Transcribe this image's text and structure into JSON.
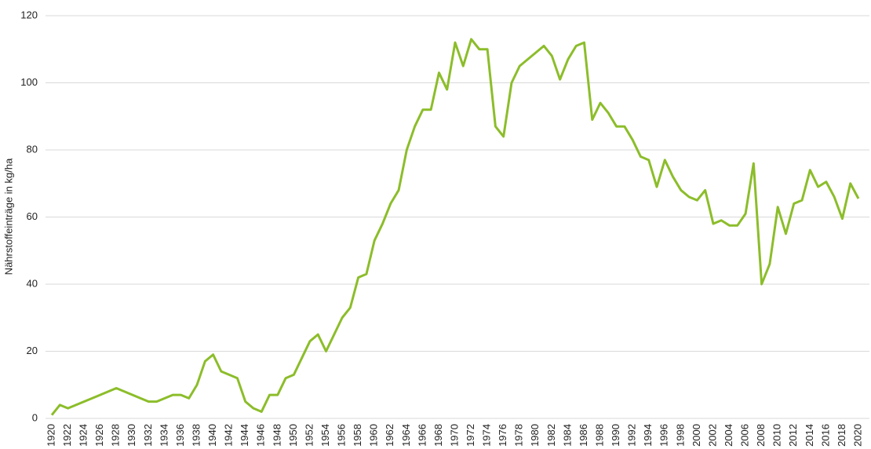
{
  "chart_data": {
    "type": "line",
    "y_label": "Nährstoffeinträge in kg/ha",
    "x": [
      1920,
      1921,
      1922,
      1928,
      1932,
      1933,
      1935,
      1936,
      1937,
      1938,
      1939,
      1940,
      1941,
      1943,
      1944,
      1945,
      1946,
      1947,
      1948,
      1949,
      1950,
      1951,
      1952,
      1953,
      1954,
      1955,
      1956,
      1957,
      1958,
      1959,
      1960,
      1961,
      1962,
      1963,
      1964,
      1965,
      1966,
      1967,
      1968,
      1969,
      1970,
      1971,
      1972,
      1973,
      1974,
      1975,
      1976,
      1977,
      1978,
      1981,
      1982,
      1983,
      1984,
      1985,
      1986,
      1987,
      1988,
      1989,
      1990,
      1991,
      1992,
      1993,
      1994,
      1995,
      1996,
      1997,
      1998,
      1999,
      2000,
      2001,
      2002,
      2003,
      2004,
      2005,
      2006,
      2007,
      2008,
      2009,
      2010,
      2011,
      2012,
      2013,
      2014,
      2015,
      2016,
      2017,
      2018,
      2019,
      2020
    ],
    "series": [
      {
        "color": "#8cbd2a",
        "values": [
          1,
          4,
          3,
          9,
          5,
          5,
          7,
          7,
          6,
          10,
          17,
          19,
          14,
          12,
          5,
          3,
          2,
          7,
          7,
          12,
          13,
          18,
          23,
          25,
          20,
          25,
          30,
          33,
          42,
          43,
          53,
          58,
          64,
          68,
          80,
          87,
          92,
          92,
          103,
          98,
          112,
          105,
          113,
          110,
          110,
          87,
          84,
          100,
          105,
          111,
          108,
          101,
          107,
          111,
          112,
          89,
          94,
          91,
          87,
          87,
          83,
          78,
          77,
          69,
          77,
          72,
          68,
          66,
          65,
          68,
          58,
          59,
          57.5,
          57.5,
          61,
          76,
          40,
          46,
          63,
          55,
          64,
          65,
          74,
          69,
          70.5,
          66,
          59.5,
          70,
          65.5
        ]
      }
    ],
    "xlim": [
      1920,
      2020
    ],
    "ylim": [
      0,
      120
    ],
    "xticks": [
      1920,
      1922,
      1924,
      1926,
      1928,
      1930,
      1932,
      1934,
      1936,
      1938,
      1940,
      1942,
      1944,
      1946,
      1948,
      1950,
      1952,
      1954,
      1956,
      1958,
      1960,
      1962,
      1964,
      1966,
      1968,
      1970,
      1972,
      1974,
      1976,
      1978,
      1980,
      1982,
      1984,
      1986,
      1988,
      1990,
      1992,
      1994,
      1996,
      1998,
      2000,
      2002,
      2004,
      2006,
      2008,
      2010,
      2012,
      2014,
      2016,
      2018,
      2020
    ],
    "yticks": [
      0,
      20,
      40,
      60,
      80,
      100,
      120
    ],
    "grid": true
  }
}
